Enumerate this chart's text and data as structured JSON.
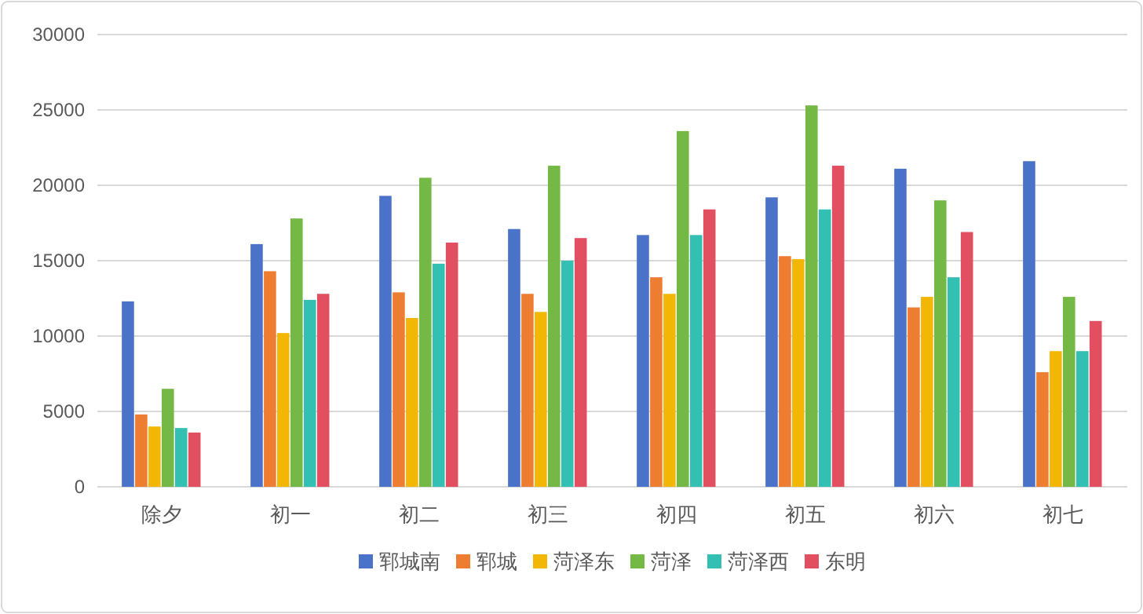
{
  "chart_data": {
    "type": "bar",
    "categories": [
      "除夕",
      "初一",
      "初二",
      "初三",
      "初四",
      "初五",
      "初六",
      "初七"
    ],
    "series": [
      {
        "name": "郓城南",
        "color": "#4a72c8",
        "values": [
          12300,
          16100,
          19300,
          17100,
          16700,
          19200,
          21100,
          21600
        ]
      },
      {
        "name": "郓城",
        "color": "#ed7d31",
        "values": [
          4800,
          14300,
          12900,
          12800,
          13900,
          15300,
          11900,
          7600
        ]
      },
      {
        "name": "菏泽东",
        "color": "#f2b705",
        "values": [
          4000,
          10200,
          11200,
          11600,
          12800,
          15100,
          12600,
          9000
        ]
      },
      {
        "name": "菏泽",
        "color": "#74b845",
        "values": [
          6500,
          17800,
          20500,
          21300,
          23600,
          25300,
          19000,
          12600
        ]
      },
      {
        "name": "菏泽西",
        "color": "#33c0b2",
        "values": [
          3900,
          12400,
          14800,
          15000,
          16700,
          18400,
          13900,
          9000
        ]
      },
      {
        "name": "东明",
        "color": "#e24f60",
        "values": [
          3600,
          12800,
          16200,
          16500,
          18400,
          21300,
          16900,
          11000
        ]
      }
    ],
    "ylim": [
      0,
      30000
    ],
    "yticks": [
      0,
      5000,
      10000,
      15000,
      20000,
      25000,
      30000
    ],
    "grid": "y",
    "legend": "bottom"
  }
}
